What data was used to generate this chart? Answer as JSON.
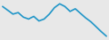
{
  "x": [
    0,
    1,
    2,
    3,
    4,
    5,
    6,
    7,
    8,
    9,
    10,
    11,
    12,
    13,
    14,
    15,
    16,
    17,
    18,
    19,
    20
  ],
  "y": [
    88,
    78,
    68,
    72,
    60,
    55,
    62,
    50,
    55,
    68,
    85,
    95,
    88,
    75,
    82,
    70,
    58,
    48,
    35,
    22,
    10
  ],
  "line_color": "#2196c8",
  "line_width": 1.2,
  "background_color": "#e8e8e8"
}
